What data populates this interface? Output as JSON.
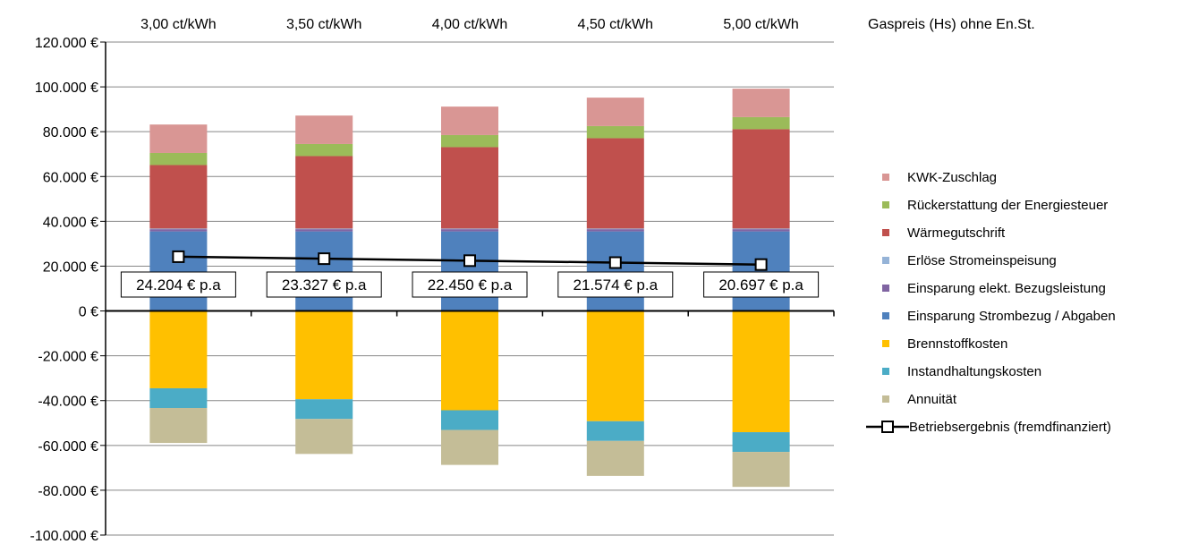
{
  "chart_data": {
    "type": "bar",
    "stacked": true,
    "categories": [
      "3,00 ct/kWh",
      "3,50 ct/kWh",
      "4,00 ct/kWh",
      "4,50 ct/kWh",
      "5,00 ct/kWh"
    ],
    "category_axis_title": "Gaspreis (Hs) ohne En.St.",
    "ylim": [
      -100000,
      120000
    ],
    "y_ticks": [
      {
        "value": 120000,
        "label": "120.000 €"
      },
      {
        "value": 100000,
        "label": "100.000 €"
      },
      {
        "value": 80000,
        "label": "80.000 €"
      },
      {
        "value": 60000,
        "label": "60.000 €"
      },
      {
        "value": 40000,
        "label": "40.000 €"
      },
      {
        "value": 20000,
        "label": "20.000 €"
      },
      {
        "value": 0,
        "label": "0 €"
      },
      {
        "value": -20000,
        "label": "-20.000 €"
      },
      {
        "value": -40000,
        "label": "-40.000 €"
      },
      {
        "value": -60000,
        "label": "-60.000 €"
      },
      {
        "value": -80000,
        "label": "-80.000 €"
      },
      {
        "value": -100000,
        "label": "-100.000 €"
      }
    ],
    "grid": true,
    "legend_position": "right",
    "positive_series": [
      {
        "name": "Einsparung Strombezug / Abgaben",
        "color": "#4F81BD",
        "values": [
          35500,
          35500,
          35500,
          35500,
          35500
        ]
      },
      {
        "name": "Einsparung elekt. Bezugsleistung",
        "color": "#8064A2",
        "values": [
          1000,
          1000,
          1000,
          1000,
          1000
        ]
      },
      {
        "name": "Erlöse Stromeinspeisung",
        "color": "#95B3D7",
        "values": [
          300,
          300,
          300,
          300,
          300
        ]
      },
      {
        "name": "Wärmegutschrift",
        "color": "#C0504D",
        "values": [
          28300,
          32300,
          36300,
          40300,
          44300
        ]
      },
      {
        "name": "Rückerstattung der Energiesteuer",
        "color": "#9BBB59",
        "values": [
          5400,
          5400,
          5400,
          5400,
          5400
        ]
      },
      {
        "name": "KWK-Zuschlag",
        "color": "#D99694",
        "values": [
          12700,
          12700,
          12700,
          12700,
          12700
        ]
      }
    ],
    "negative_series": [
      {
        "name": "Brennstoffkosten",
        "color": "#FFC000",
        "values": [
          -34500,
          -39400,
          -44300,
          -49200,
          -54100
        ]
      },
      {
        "name": "Instandhaltungskosten",
        "color": "#4BACC6",
        "values": [
          -8800,
          -8800,
          -8800,
          -8800,
          -8800
        ]
      },
      {
        "name": "Annuität",
        "color": "#C4BD97",
        "values": [
          -15600,
          -15600,
          -15600,
          -15600,
          -15600
        ]
      }
    ],
    "line_series": {
      "name": "Betriebsergebnis (fremdfinanziert)",
      "color": "#000000",
      "values": [
        24204,
        23327,
        22450,
        21574,
        20697
      ],
      "labels": [
        "24.204 € p.a",
        "23.327 € p.a",
        "22.450 € p.a",
        "21.574 € p.a",
        "20.697 € p.a"
      ]
    },
    "legend": [
      {
        "name": "KWK-Zuschlag",
        "color": "#D99694",
        "kind": "box"
      },
      {
        "name": "Rückerstattung der Energiesteuer",
        "color": "#9BBB59",
        "kind": "box"
      },
      {
        "name": "Wärmegutschrift",
        "color": "#C0504D",
        "kind": "box"
      },
      {
        "name": "Erlöse Stromeinspeisung",
        "color": "#95B3D7",
        "kind": "box"
      },
      {
        "name": "Einsparung elekt. Bezugsleistung",
        "color": "#8064A2",
        "kind": "box"
      },
      {
        "name": "Einsparung Strombezug / Abgaben",
        "color": "#4F81BD",
        "kind": "box"
      },
      {
        "name": "Brennstoffkosten",
        "color": "#FFC000",
        "kind": "box"
      },
      {
        "name": "Instandhaltungskosten",
        "color": "#4BACC6",
        "kind": "box"
      },
      {
        "name": "Annuität",
        "color": "#C4BD97",
        "kind": "box"
      },
      {
        "name": "Betriebsergebnis (fremdfinanziert)",
        "color": "#000000",
        "kind": "line"
      }
    ]
  }
}
